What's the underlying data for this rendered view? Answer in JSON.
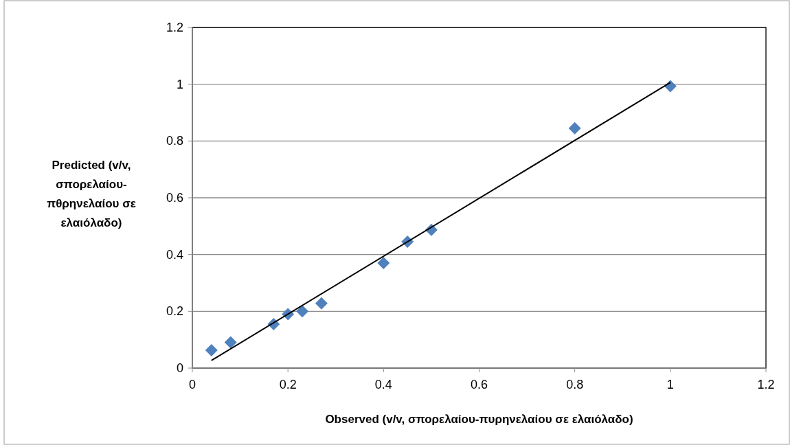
{
  "chart_data": {
    "type": "scatter",
    "xlabel": "Observed (v/v, σπορελαίου-πυρηνελαίου σε ελαιόλαδο)",
    "ylabel": "Predicted (v/v, σπορελαίου-πθρηνελαίου σε ελαιόλαδο)",
    "series": [
      {
        "marker": "diamond",
        "color": "#4f81bd",
        "x": [
          0.04,
          0.08,
          0.17,
          0.2,
          0.23,
          0.27,
          0.4,
          0.45,
          0.5,
          0.8,
          1.0
        ],
        "values": [
          0.063,
          0.091,
          0.155,
          0.19,
          0.2,
          0.228,
          0.37,
          0.445,
          0.487,
          0.845,
          0.993
        ]
      },
      {
        "type": "line",
        "color": "#000000",
        "x": [
          0.04,
          1.0
        ],
        "values": [
          0.027,
          1.006
        ]
      }
    ],
    "xlim": [
      0,
      1.2
    ],
    "xticks": [
      0,
      0.2,
      0.4,
      0.6,
      0.8,
      1,
      1.2
    ],
    "ylim": [
      0,
      1.2
    ],
    "yticks": [
      0,
      0.2,
      0.4,
      0.6,
      0.8,
      1,
      1.2
    ],
    "grid": "y"
  }
}
